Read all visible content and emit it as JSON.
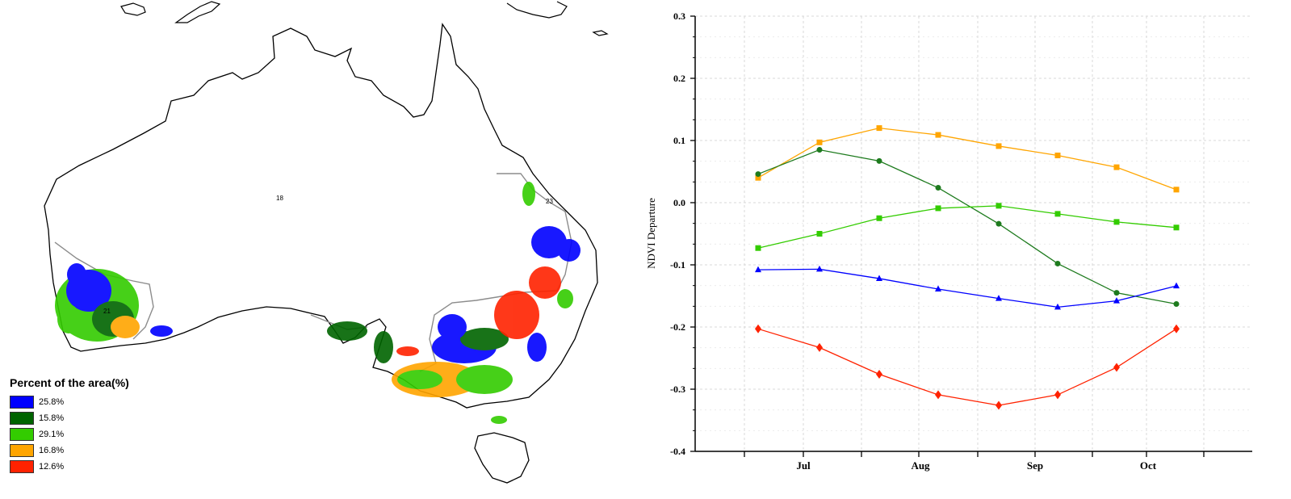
{
  "map": {
    "region_labels": [
      "18",
      "21",
      "23"
    ],
    "legend": {
      "title": "Percent of the area(%)",
      "items": [
        {
          "label": "25.8%",
          "color": "#0000ff"
        },
        {
          "label": "15.8%",
          "color": "#006400"
        },
        {
          "label": "29.1%",
          "color": "#33cc00"
        },
        {
          "label": "16.8%",
          "color": "#ffa500"
        },
        {
          "label": "12.6%",
          "color": "#ff2200"
        }
      ]
    }
  },
  "chart_data": {
    "type": "line",
    "ylabel": "NDVI Departure",
    "xlabel": "",
    "ylim": [
      -0.4,
      0.3
    ],
    "yticks": [
      "0.3",
      "0.2",
      "0.1",
      "0.0",
      "-0.1",
      "-0.2",
      "-0.3",
      "-0.4"
    ],
    "xtick_labels": [
      "Jul",
      "Aug",
      "Sep",
      "Oct"
    ],
    "grid": true,
    "series": [
      {
        "color": "#ffa500",
        "marker": "square",
        "values": [
          0.04,
          0.097,
          0.12,
          0.109,
          0.091,
          0.076,
          0.057,
          0.021
        ]
      },
      {
        "color": "#1e7b1e",
        "marker": "circle",
        "values": [
          0.046,
          0.085,
          0.067,
          0.024,
          -0.034,
          -0.098,
          -0.145,
          -0.163
        ]
      },
      {
        "color": "#33cc00",
        "marker": "square",
        "values": [
          -0.073,
          -0.05,
          -0.025,
          -0.009,
          -0.005,
          -0.018,
          -0.031,
          -0.04
        ]
      },
      {
        "color": "#0000ff",
        "marker": "triangle",
        "values": [
          -0.108,
          -0.107,
          -0.122,
          -0.139,
          -0.154,
          -0.168,
          -0.158,
          -0.134
        ]
      },
      {
        "color": "#ff2200",
        "marker": "diamond",
        "values": [
          -0.203,
          -0.233,
          -0.276,
          -0.309,
          -0.326,
          -0.309,
          -0.265,
          -0.203
        ]
      }
    ]
  }
}
